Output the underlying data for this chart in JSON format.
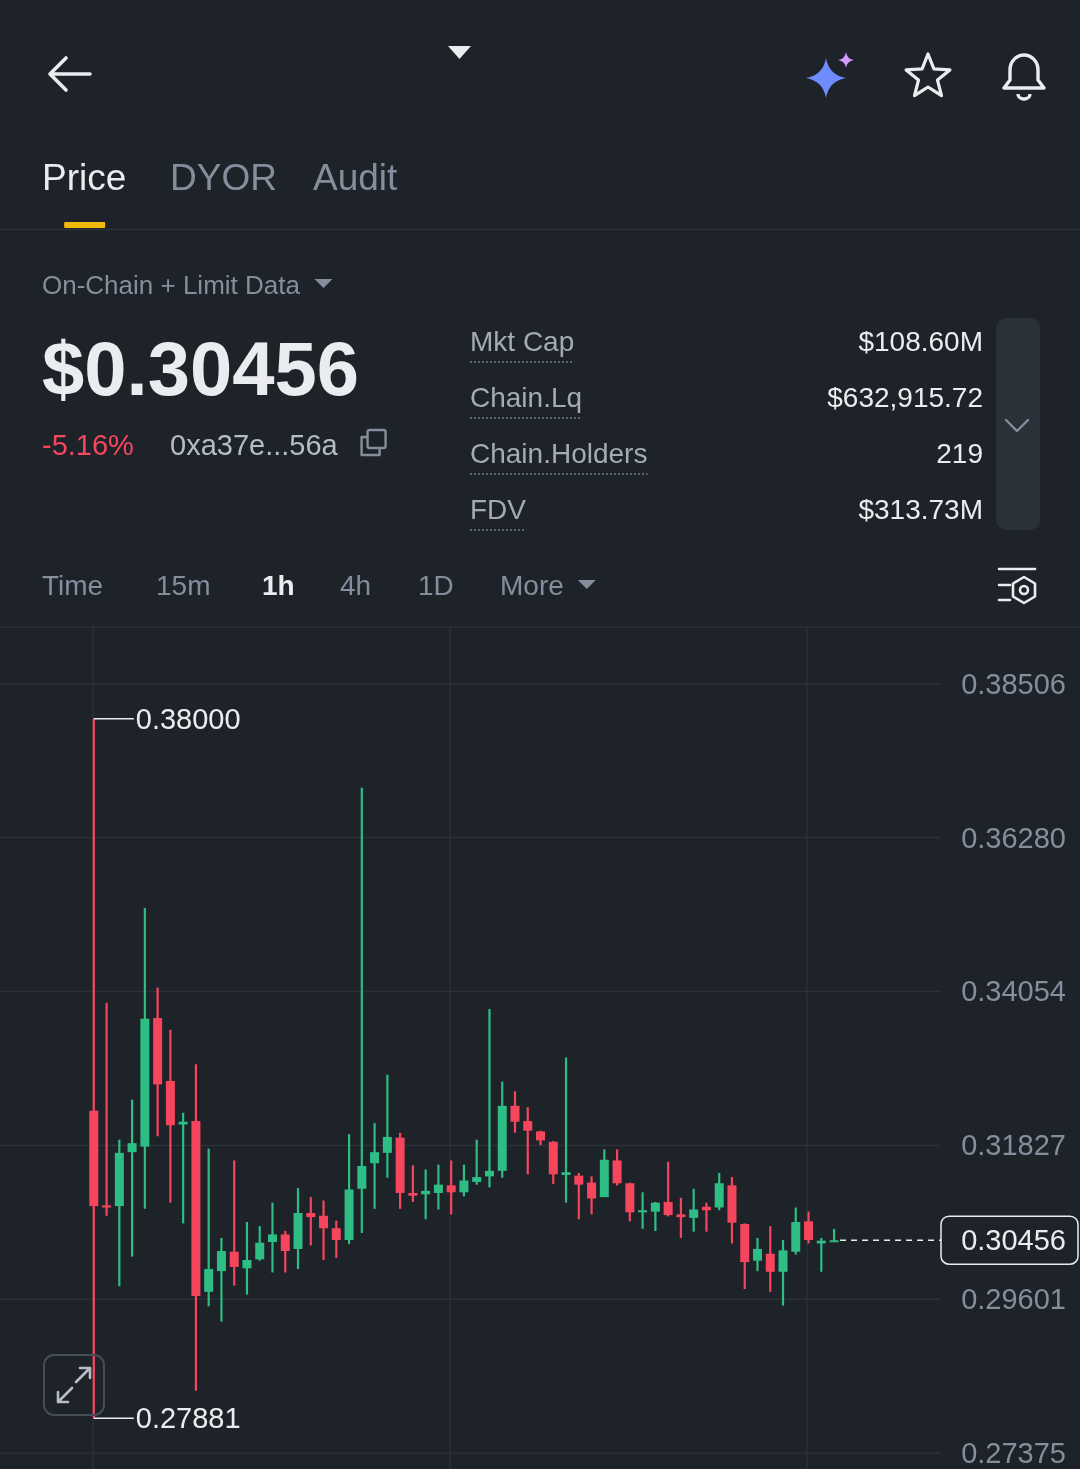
{
  "chart_data": {
    "type": "candlestick",
    "categories": [
      null,
      null,
      null,
      null,
      null,
      null,
      null,
      null,
      null,
      null,
      null,
      null,
      null,
      null,
      null,
      null,
      null,
      null,
      null,
      null,
      null,
      null,
      null,
      null,
      null,
      null,
      null,
      null,
      null,
      null,
      null,
      null,
      null,
      null,
      null,
      null,
      null,
      null,
      null,
      null,
      null,
      null,
      null,
      null,
      null,
      null,
      null,
      null,
      null,
      null,
      null,
      null,
      null,
      null,
      null,
      null,
      null,
      null,
      null
    ],
    "ohlc": [
      [
        0.3233,
        0.38,
        0.27881,
        0.3095
      ],
      [
        0.3096,
        0.3389,
        0.3081,
        0.3093
      ],
      [
        0.3095,
        0.3191,
        0.2979,
        0.3172
      ],
      [
        0.3173,
        0.3249,
        0.3022,
        0.3186
      ],
      [
        0.3181,
        0.3526,
        0.3091,
        0.3366
      ],
      [
        0.3367,
        0.3411,
        0.3196,
        0.3271
      ],
      [
        0.3276,
        0.335,
        0.31,
        0.3212
      ],
      [
        0.3213,
        0.323,
        0.307,
        0.3217
      ],
      [
        0.3218,
        0.33,
        0.2828,
        0.2965
      ],
      [
        0.2971,
        0.3178,
        0.295,
        0.3004
      ],
      [
        0.3001,
        0.3049,
        0.2928,
        0.303
      ],
      [
        0.3029,
        0.3161,
        0.298,
        0.3007
      ],
      [
        0.3005,
        0.3072,
        0.2967,
        0.3017
      ],
      [
        0.3018,
        0.3066,
        0.3016,
        0.3042
      ],
      [
        0.3043,
        0.31,
        0.2999,
        0.3054
      ],
      [
        0.3054,
        0.3059,
        0.2999,
        0.303
      ],
      [
        0.3033,
        0.3121,
        0.3004,
        0.3085
      ],
      [
        0.3085,
        0.3108,
        0.3038,
        0.3079
      ],
      [
        0.3081,
        0.3103,
        0.3017,
        0.3063
      ],
      [
        0.3063,
        0.3074,
        0.302,
        0.3046
      ],
      [
        0.3046,
        0.3199,
        0.304,
        0.3119
      ],
      [
        0.312,
        0.37,
        0.3056,
        0.3153
      ],
      [
        0.3157,
        0.3215,
        0.3091,
        0.3173
      ],
      [
        0.3172,
        0.3285,
        0.3136,
        0.3195
      ],
      [
        0.3194,
        0.3201,
        0.3091,
        0.3114
      ],
      [
        0.3114,
        0.3154,
        0.3101,
        0.311
      ],
      [
        0.3112,
        0.3148,
        0.3076,
        0.3117
      ],
      [
        0.3114,
        0.3155,
        0.309,
        0.3126
      ],
      [
        0.3125,
        0.3161,
        0.3083,
        0.3115
      ],
      [
        0.3115,
        0.3155,
        0.3109,
        0.3132
      ],
      [
        0.313,
        0.3191,
        0.3126,
        0.3137
      ],
      [
        0.3138,
        0.338,
        0.3122,
        0.3146
      ],
      [
        0.3146,
        0.3275,
        0.3136,
        0.324
      ],
      [
        0.324,
        0.3261,
        0.3201,
        0.3217
      ],
      [
        0.3218,
        0.3238,
        0.3141,
        0.3204
      ],
      [
        0.3203,
        0.3204,
        0.3183,
        0.319
      ],
      [
        0.3188,
        0.3189,
        0.3127,
        0.3141
      ],
      [
        0.314,
        0.331,
        0.31,
        0.3144
      ],
      [
        0.3139,
        0.3143,
        0.3076,
        0.3126
      ],
      [
        0.3129,
        0.3138,
        0.3083,
        0.3106
      ],
      [
        0.3108,
        0.3177,
        0.3108,
        0.3162
      ],
      [
        0.3161,
        0.3177,
        0.3125,
        0.3128
      ],
      [
        0.3128,
        0.3129,
        0.3073,
        0.3086
      ],
      [
        0.3086,
        0.3115,
        0.3062,
        0.3089
      ],
      [
        0.3087,
        0.3101,
        0.3059,
        0.31
      ],
      [
        0.3101,
        0.3159,
        0.308,
        0.3082
      ],
      [
        0.3083,
        0.3107,
        0.3049,
        0.3079
      ],
      [
        0.3078,
        0.312,
        0.3058,
        0.309
      ],
      [
        0.3094,
        0.31,
        0.3058,
        0.3089
      ],
      [
        0.3093,
        0.3143,
        0.3089,
        0.3128
      ],
      [
        0.3125,
        0.3137,
        0.3041,
        0.3071
      ],
      [
        0.3069,
        0.307,
        0.2975,
        0.3014
      ],
      [
        0.3016,
        0.3049,
        0.3001,
        0.3033
      ],
      [
        0.3026,
        0.3066,
        0.2971,
        0.3
      ],
      [
        0.3,
        0.3046,
        0.2951,
        0.3031
      ],
      [
        0.3029,
        0.3093,
        0.3025,
        0.3072
      ],
      [
        0.3073,
        0.3087,
        0.3041,
        0.3046
      ],
      [
        0.3041,
        0.3049,
        0.3,
        0.3045
      ],
      [
        0.3044,
        0.3062,
        0.3044,
        0.30456
      ]
    ],
    "colors": [
      "#f6465d",
      "#f6465d",
      "#2ebd85",
      "#2ebd85",
      "#2ebd85",
      "#f6465d",
      "#f6465d",
      "#2ebd85",
      "#f6465d",
      "#2ebd85",
      "#2ebd85",
      "#f6465d",
      "#2ebd85",
      "#2ebd85",
      "#2ebd85",
      "#f6465d",
      "#2ebd85",
      "#f6465d",
      "#f6465d",
      "#f6465d",
      "#2ebd85",
      "#2ebd85",
      "#2ebd85",
      "#2ebd85",
      "#f6465d",
      "#f6465d",
      "#2ebd85",
      "#2ebd85",
      "#f6465d",
      "#2ebd85",
      "#2ebd85",
      "#2ebd85",
      "#2ebd85",
      "#f6465d",
      "#f6465d",
      "#f6465d",
      "#f6465d",
      "#2ebd85",
      "#f6465d",
      "#f6465d",
      "#2ebd85",
      "#f6465d",
      "#f6465d",
      "#2ebd85",
      "#2ebd85",
      "#f6465d",
      "#f6465d",
      "#2ebd85",
      "#f6465d",
      "#2ebd85",
      "#f6465d",
      "#f6465d",
      "#2ebd85",
      "#f6465d",
      "#2ebd85",
      "#2ebd85",
      "#f6465d",
      "#2ebd85",
      "#2ebd85"
    ],
    "ylim": [
      0.2735,
      0.3934
    ],
    "yticks": [
      0.38506,
      {
        "value": 0.3628,
        "label": "0.36280"
      },
      0.34054,
      0.31827,
      0.29601,
      0.27375
    ],
    "grid": true,
    "tick_labels": "y",
    "ref_lines": [
      {
        "axis": "y",
        "value": 0.30456,
        "label": "0.30456",
        "line_style": "dashed",
        "color": "#eaecef"
      }
    ],
    "annotations": [
      "Price",
      "DYOR",
      "Audit",
      "On-Chain + Limit Data",
      "$0.30456",
      "-5.16%",
      "0xa37e...56a",
      "Mkt Cap",
      "$108.60M",
      "Chain.Lq",
      "$632,915.72",
      "Chain.Holders",
      "219",
      "FDV",
      "$313.73M",
      "Time",
      "15m",
      "1h",
      "4h",
      "1D",
      "More",
      "0.38000",
      "0.27881"
    ]
  }
}
